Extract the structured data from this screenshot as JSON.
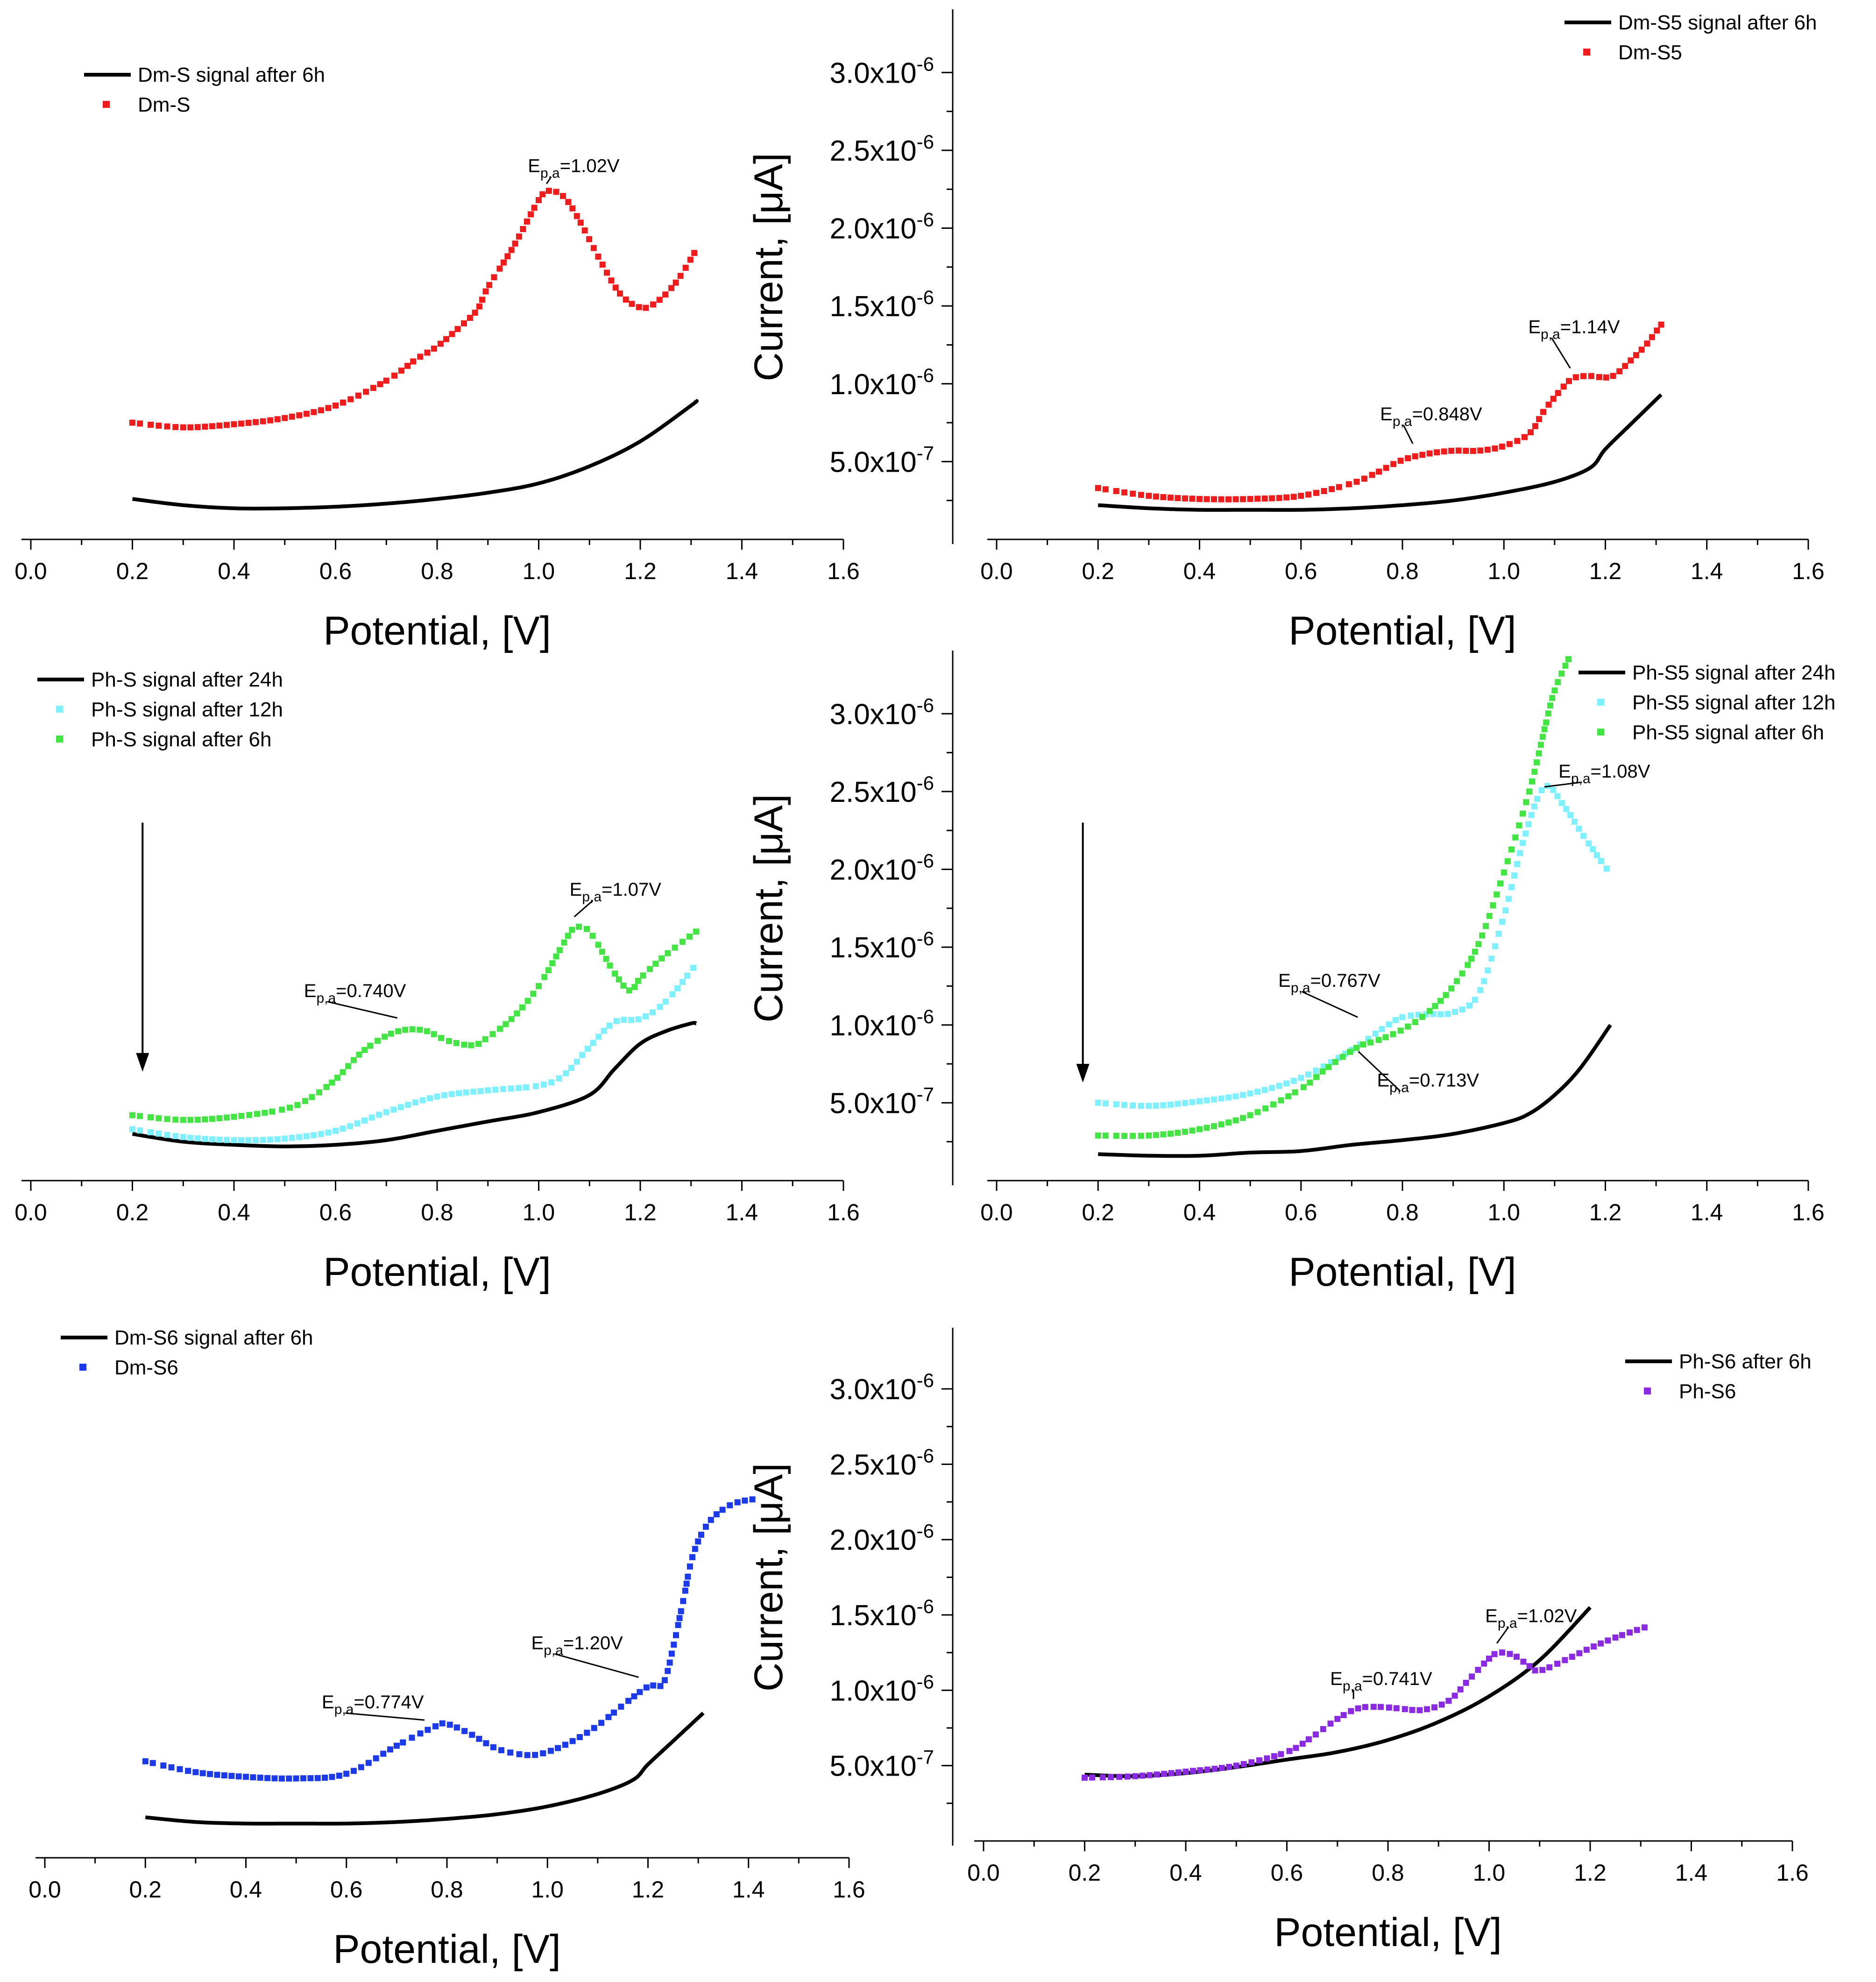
{
  "figure": {
    "xlabel": "Potential, [V]",
    "ylabel": "Current, [μA]",
    "xticks": [
      "0.0",
      "0.2",
      "0.4",
      "0.6",
      "0.8",
      "1.0",
      "1.2",
      "1.4",
      "1.6"
    ],
    "yticks": [
      {
        "value": 5e-07,
        "mantissa": "5.0x10",
        "exp": "-7"
      },
      {
        "value": 1e-06,
        "mantissa": "1.0x10",
        "exp": "-6"
      },
      {
        "value": 1.5e-06,
        "mantissa": "1.5x10",
        "exp": "-6"
      },
      {
        "value": 2e-06,
        "mantissa": "2.0x10",
        "exp": "-6"
      },
      {
        "value": 2.5e-06,
        "mantissa": "2.5x10",
        "exp": "-6"
      },
      {
        "value": 3e-06,
        "mantissa": "3.0x10",
        "exp": "-6"
      }
    ],
    "colors": {
      "black": "#000000",
      "red": "#ee1c1c",
      "cyan": "#7ff0ff",
      "green": "#44e444",
      "blue": "#1c3ae8",
      "purple": "#8a2be2"
    }
  },
  "chart_data": [
    {
      "id": "dm-s",
      "type": "line",
      "xlim": [
        0.0,
        1.6
      ],
      "ylim": [
        0.0,
        3.4e-06
      ],
      "show_yaxis": false,
      "series": [
        {
          "name": "Dm-S signal after 6h",
          "style": "line",
          "color": "#000000",
          "x": [
            0.2,
            0.3,
            0.4,
            0.5,
            0.6,
            0.7,
            0.8,
            0.9,
            1.0,
            1.1,
            1.2,
            1.3,
            1.31
          ],
          "y": [
            2.6e-07,
            2.2e-07,
            2e-07,
            2e-07,
            2.1e-07,
            2.3e-07,
            2.6e-07,
            3e-07,
            3.6e-07,
            4.7e-07,
            6.3e-07,
            8.6e-07,
            8.9e-07
          ]
        },
        {
          "name": "Dm-S",
          "style": "dots",
          "color": "#ee1c1c",
          "x": [
            0.2,
            0.3,
            0.4,
            0.5,
            0.6,
            0.7,
            0.76,
            0.8,
            0.85,
            0.88,
            0.9,
            0.95,
            1.0,
            1.02,
            1.05,
            1.08,
            1.12,
            1.16,
            1.2,
            1.23,
            1.27,
            1.31
          ],
          "y": [
            7.5e-07,
            7.2e-07,
            7.4e-07,
            7.8e-07,
            8.6e-07,
            1.02e-06,
            1.16e-06,
            1.24e-06,
            1.38e-06,
            1.48e-06,
            1.62e-06,
            1.88e-06,
            2.18e-06,
            2.24e-06,
            2.2e-06,
            2.05e-06,
            1.8e-06,
            1.58e-06,
            1.49e-06,
            1.52e-06,
            1.65e-06,
            1.86e-06
          ]
        }
      ],
      "annotations": [
        {
          "base": "E",
          "sub": "p,a",
          "value": "=1.02V",
          "x": 1.02,
          "y": 2.24e-06
        }
      ]
    },
    {
      "id": "dm-s5",
      "type": "line",
      "xlim": [
        0.0,
        1.6
      ],
      "ylim": [
        0.0,
        3.4e-06
      ],
      "show_yaxis": true,
      "series": [
        {
          "name": "Dm-S5 signal after 6h",
          "style": "line",
          "color": "#000000",
          "x": [
            0.2,
            0.3,
            0.4,
            0.5,
            0.6,
            0.7,
            0.8,
            0.9,
            1.0,
            1.1,
            1.17,
            1.2,
            1.25,
            1.31
          ],
          "y": [
            2.2e-07,
            2e-07,
            1.9e-07,
            1.9e-07,
            1.9e-07,
            2e-07,
            2.2e-07,
            2.5e-07,
            3e-07,
            3.7e-07,
            4.6e-07,
            5.8e-07,
            7.4e-07,
            9.3e-07
          ]
        },
        {
          "name": "Dm-S5",
          "style": "dots",
          "color": "#ee1c1c",
          "x": [
            0.2,
            0.3,
            0.4,
            0.5,
            0.6,
            0.7,
            0.75,
            0.8,
            0.85,
            0.9,
            0.95,
            1.0,
            1.05,
            1.08,
            1.12,
            1.14,
            1.17,
            1.2,
            1.22,
            1.25,
            1.28,
            1.31
          ],
          "y": [
            3.3e-07,
            2.8e-07,
            2.6e-07,
            2.6e-07,
            2.8e-07,
            3.6e-07,
            4.3e-07,
            5.1e-07,
            5.5e-07,
            5.7e-07,
            5.7e-07,
            6e-07,
            6.8e-07,
            8.3e-07,
            9.9e-07,
            1.04e-06,
            1.05e-06,
            1.04e-06,
            1.06e-06,
            1.15e-06,
            1.25e-06,
            1.38e-06
          ]
        }
      ],
      "annotations": [
        {
          "base": "E",
          "sub": "p,a",
          "value": "=0.848V",
          "x": 0.848,
          "y": 5.4e-07
        },
        {
          "base": "E",
          "sub": "p,a",
          "value": "=1.14V",
          "x": 1.14,
          "y": 1.04e-06
        }
      ]
    },
    {
      "id": "ph-s",
      "type": "line",
      "xlim": [
        0.0,
        1.6
      ],
      "ylim": [
        0.0,
        3.4e-06
      ],
      "show_yaxis": false,
      "series": [
        {
          "name": "Ph-S signal after 24h",
          "style": "line",
          "color": "#000000",
          "x": [
            0.2,
            0.3,
            0.4,
            0.5,
            0.6,
            0.7,
            0.8,
            0.9,
            1.0,
            1.1,
            1.15,
            1.2,
            1.25,
            1.3,
            1.31
          ],
          "y": [
            3e-07,
            2.5e-07,
            2.3e-07,
            2.2e-07,
            2.3e-07,
            2.6e-07,
            3.2e-07,
            3.8e-07,
            4.4e-07,
            5.5e-07,
            7.2e-07,
            8.8e-07,
            9.6e-07,
            1.01e-06,
            1.01e-06
          ]
        },
        {
          "name": "Ph-S signal after 12h",
          "style": "dots",
          "color": "#7ff0ff",
          "x": [
            0.2,
            0.3,
            0.4,
            0.5,
            0.6,
            0.7,
            0.8,
            0.9,
            1.0,
            1.05,
            1.1,
            1.15,
            1.2,
            1.25,
            1.31
          ],
          "y": [
            3.3e-07,
            2.8e-07,
            2.6e-07,
            2.7e-07,
            3.2e-07,
            4.4e-07,
            5.4e-07,
            5.8e-07,
            6.1e-07,
            6.8e-07,
            8.6e-07,
            1.02e-06,
            1.04e-06,
            1.15e-06,
            1.39e-06
          ]
        },
        {
          "name": "Ph-S signal after 6h",
          "style": "dots",
          "color": "#44e444",
          "x": [
            0.2,
            0.3,
            0.4,
            0.5,
            0.55,
            0.6,
            0.65,
            0.7,
            0.74,
            0.78,
            0.82,
            0.87,
            0.9,
            0.95,
            1.0,
            1.05,
            1.07,
            1.1,
            1.15,
            1.18,
            1.2,
            1.25,
            1.31
          ],
          "y": [
            4.2e-07,
            3.9e-07,
            4.1e-07,
            4.6e-07,
            5.3e-07,
            6.5e-07,
            8.2e-07,
            9.3e-07,
            9.7e-07,
            9.6e-07,
            9e-07,
            8.7e-07,
            9.2e-07,
            1.05e-06,
            1.25e-06,
            1.53e-06,
            1.62e-06,
            1.6e-06,
            1.33e-06,
            1.22e-06,
            1.3e-06,
            1.45e-06,
            1.6e-06
          ]
        }
      ],
      "arrow": {
        "x": 0.22,
        "y_from": 2.3e-06,
        "y_to": 7e-07
      },
      "annotations": [
        {
          "base": "E",
          "sub": "p,a",
          "value": "=0.740V",
          "x": 0.74,
          "y": 9.7e-07
        },
        {
          "base": "E",
          "sub": "p,a",
          "value": "=1.07V",
          "x": 1.07,
          "y": 1.62e-06
        }
      ]
    },
    {
      "id": "ph-s5",
      "type": "line",
      "xlim": [
        0.0,
        1.6
      ],
      "ylim": [
        0.0,
        3.4e-06
      ],
      "show_yaxis": true,
      "series": [
        {
          "name": "Ph-S5 signal after 24h",
          "style": "line",
          "color": "#000000",
          "x": [
            0.2,
            0.3,
            0.4,
            0.5,
            0.6,
            0.7,
            0.8,
            0.9,
            1.0,
            1.05,
            1.1,
            1.15,
            1.21
          ],
          "y": [
            1.7e-07,
            1.6e-07,
            1.6e-07,
            1.8e-07,
            1.9e-07,
            2.3e-07,
            2.6e-07,
            3e-07,
            3.7e-07,
            4.3e-07,
            5.5e-07,
            7.2e-07,
            1e-06
          ]
        },
        {
          "name": "Ph-S5 signal after 12h",
          "style": "dots",
          "color": "#7ff0ff",
          "x": [
            0.2,
            0.3,
            0.4,
            0.5,
            0.6,
            0.7,
            0.767,
            0.8,
            0.85,
            0.9,
            0.95,
            1.0,
            1.04,
            1.08,
            1.12,
            1.16,
            1.21
          ],
          "y": [
            5e-07,
            4.8e-07,
            5.1e-07,
            5.6e-07,
            6.6e-07,
            8.4e-07,
            9.9e-07,
            1.05e-06,
            1.07e-06,
            1.08e-06,
            1.2e-06,
            1.7e-06,
            2.2e-06,
            2.53e-06,
            2.4e-06,
            2.2e-06,
            1.97e-06
          ]
        },
        {
          "name": "Ph-S5 signal after 6h",
          "style": "dots",
          "color": "#44e444",
          "x": [
            0.2,
            0.3,
            0.4,
            0.5,
            0.6,
            0.65,
            0.713,
            0.75,
            0.8,
            0.85,
            0.9,
            0.95,
            1.0,
            1.05,
            1.08,
            1.1,
            1.13
          ],
          "y": [
            2.9e-07,
            2.9e-07,
            3.3e-07,
            4.2e-07,
            5.9e-07,
            7.2e-07,
            8.6e-07,
            9e-07,
            9.7e-07,
            1.08e-06,
            1.25e-06,
            1.52e-06,
            1.98e-06,
            2.5e-06,
            2.9e-06,
            3.15e-06,
            3.37e-06
          ]
        }
      ],
      "arrow": {
        "x": 0.17,
        "y_from": 2.3e-06,
        "y_to": 6.3e-07
      },
      "annotations": [
        {
          "base": "E",
          "sub": "p,a",
          "value": "=0.767V",
          "x": 0.767,
          "y": 9.9e-07
        },
        {
          "base": "E",
          "sub": "p,a",
          "value": "=0.713V",
          "x": 0.713,
          "y": 8.6e-07
        },
        {
          "base": "E",
          "sub": "p,a",
          "value": "=1.08V",
          "x": 1.08,
          "y": 2.53e-06
        }
      ]
    },
    {
      "id": "dm-s6",
      "type": "line",
      "xlim": [
        0.0,
        1.6
      ],
      "ylim": [
        0.0,
        3.4e-06
      ],
      "show_yaxis": false,
      "series": [
        {
          "name": "Dm-S6 signal after 6h",
          "style": "line",
          "color": "#000000",
          "x": [
            0.2,
            0.3,
            0.4,
            0.5,
            0.6,
            0.7,
            0.8,
            0.9,
            1.0,
            1.1,
            1.17,
            1.2,
            1.25,
            1.31
          ],
          "y": [
            2.6e-07,
            2.3e-07,
            2.2e-07,
            2.2e-07,
            2.2e-07,
            2.3e-07,
            2.5e-07,
            2.8e-07,
            3.3e-07,
            4.1e-07,
            5e-07,
            6e-07,
            7.5e-07,
            9.3e-07
          ]
        },
        {
          "name": "Dm-S6",
          "style": "dots",
          "color": "#1c3ae8",
          "x": [
            0.2,
            0.3,
            0.4,
            0.5,
            0.6,
            0.7,
            0.774,
            0.8,
            0.85,
            0.9,
            0.96,
            1.0,
            1.05,
            1.1,
            1.15,
            1.2,
            1.23,
            1.25,
            1.27,
            1.29,
            1.32,
            1.36,
            1.4,
            1.42
          ],
          "y": [
            6.2e-07,
            5.5e-07,
            5.2e-07,
            5.1e-07,
            5.4e-07,
            7.2e-07,
            8.4e-07,
            8.6e-07,
            7.9e-07,
            7e-07,
            6.6e-07,
            6.8e-07,
            7.5e-07,
            8.5e-07,
            9.8e-07,
            1.1e-06,
            1.12e-06,
            1.35e-06,
            1.65e-06,
            1.95e-06,
            2.15e-06,
            2.26e-06,
            2.3e-06,
            2.3e-06
          ]
        }
      ],
      "annotations": [
        {
          "base": "E",
          "sub": "p,a",
          "value": "=0.774V",
          "x": 0.774,
          "y": 8.4e-07
        },
        {
          "base": "E",
          "sub": "p,a",
          "value": "=1.20V",
          "x": 1.2,
          "y": 1.1e-06
        }
      ]
    },
    {
      "id": "ph-s6",
      "type": "line",
      "xlim": [
        0.0,
        1.6
      ],
      "ylim": [
        0.0,
        3.4e-06
      ],
      "show_yaxis": true,
      "series": [
        {
          "name": "Ph-S6 after 6h",
          "style": "line",
          "color": "#000000",
          "x": [
            0.2,
            0.3,
            0.4,
            0.5,
            0.6,
            0.7,
            0.8,
            0.9,
            1.0,
            1.1,
            1.2
          ],
          "y": [
            4.4e-07,
            4.3e-07,
            4.5e-07,
            4.9e-07,
            5.4e-07,
            5.9e-07,
            6.7e-07,
            7.9e-07,
            9.6e-07,
            1.2e-06,
            1.55e-06
          ]
        },
        {
          "name": "Ph-S6",
          "style": "dots",
          "color": "#8a2be2",
          "x": [
            0.2,
            0.3,
            0.4,
            0.5,
            0.6,
            0.65,
            0.7,
            0.741,
            0.78,
            0.82,
            0.87,
            0.92,
            0.96,
            1.0,
            1.02,
            1.05,
            1.08,
            1.1,
            1.15,
            1.2,
            1.25,
            1.31
          ],
          "y": [
            4.2e-07,
            4.3e-07,
            4.6e-07,
            5e-07,
            5.9e-07,
            6.9e-07,
            8.1e-07,
            8.8e-07,
            8.9e-07,
            8.8e-07,
            8.7e-07,
            9.3e-07,
            1.07e-06,
            1.21e-06,
            1.25e-06,
            1.23e-06,
            1.16e-06,
            1.13e-06,
            1.2e-06,
            1.28e-06,
            1.35e-06,
            1.42e-06
          ]
        }
      ],
      "annotations": [
        {
          "base": "E",
          "sub": "p,a",
          "value": "=0.741V",
          "x": 0.741,
          "y": 8.8e-07
        },
        {
          "base": "E",
          "sub": "p,a",
          "value": "=1.02V",
          "x": 1.02,
          "y": 1.25e-06
        }
      ]
    }
  ]
}
